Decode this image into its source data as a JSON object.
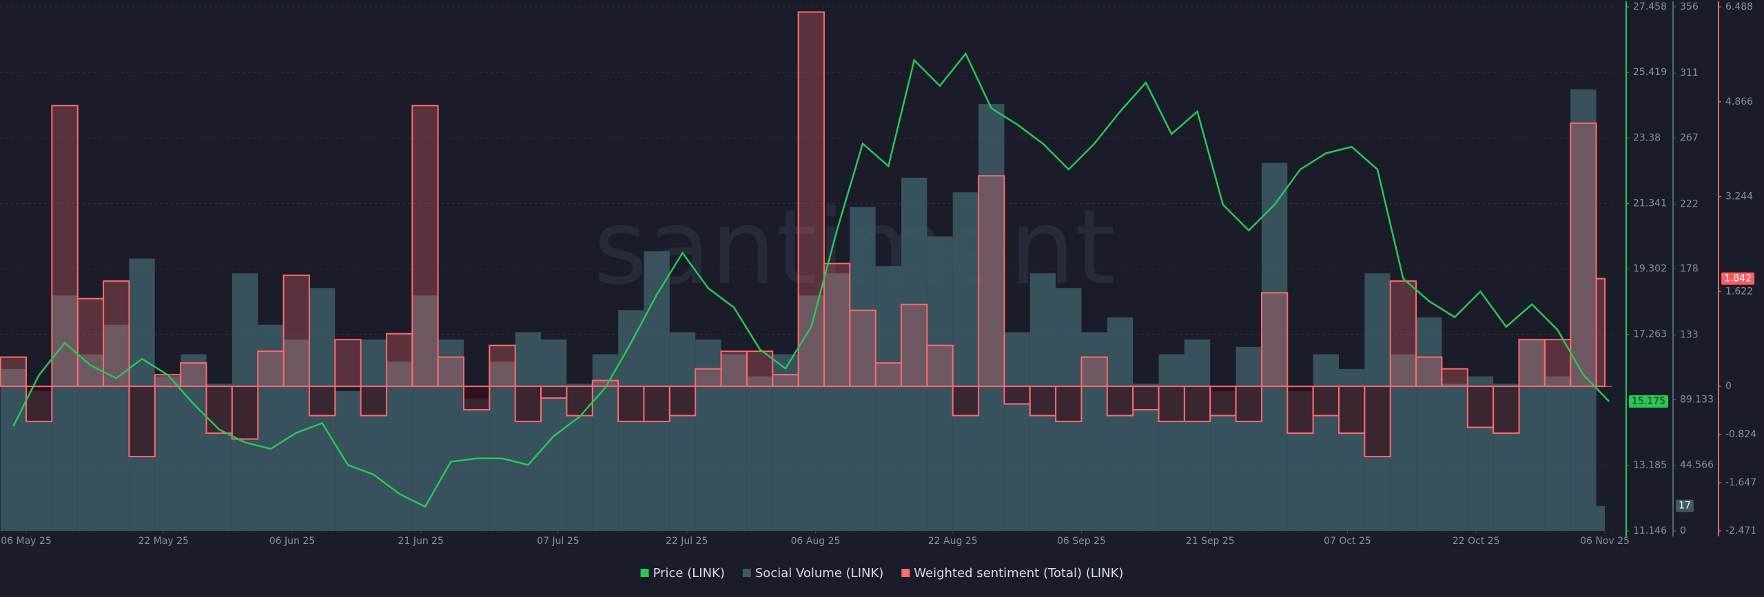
{
  "chart_data": {
    "type": "line",
    "watermark": "santiment",
    "x": [
      "2025-05-03",
      "2025-05-06",
      "2025-05-09",
      "2025-05-12",
      "2025-05-15",
      "2025-05-18",
      "2025-05-21",
      "2025-05-24",
      "2025-05-27",
      "2025-05-30",
      "2025-06-02",
      "2025-06-05",
      "2025-06-08",
      "2025-06-11",
      "2025-06-14",
      "2025-06-17",
      "2025-06-20",
      "2025-06-23",
      "2025-06-26",
      "2025-06-29",
      "2025-07-02",
      "2025-07-05",
      "2025-07-08",
      "2025-07-11",
      "2025-07-14",
      "2025-07-17",
      "2025-07-20",
      "2025-07-23",
      "2025-07-26",
      "2025-07-29",
      "2025-08-01",
      "2025-08-04",
      "2025-08-07",
      "2025-08-10",
      "2025-08-13",
      "2025-08-16",
      "2025-08-19",
      "2025-08-22",
      "2025-08-25",
      "2025-08-28",
      "2025-08-31",
      "2025-09-03",
      "2025-09-06",
      "2025-09-09",
      "2025-09-12",
      "2025-09-15",
      "2025-09-18",
      "2025-09-21",
      "2025-09-24",
      "2025-09-27",
      "2025-09-30",
      "2025-10-03",
      "2025-10-06",
      "2025-10-09",
      "2025-10-12",
      "2025-10-15",
      "2025-10-18",
      "2025-10-21",
      "2025-10-24",
      "2025-10-27",
      "2025-10-30",
      "2025-11-02",
      "2025-11-05"
    ],
    "xticks": [
      {
        "value": "2025-05-06",
        "label": "06 May 25"
      },
      {
        "value": "2025-05-22",
        "label": "22 May 25"
      },
      {
        "value": "2025-06-06",
        "label": "06 Jun 25"
      },
      {
        "value": "2025-06-21",
        "label": "21 Jun 25"
      },
      {
        "value": "2025-07-07",
        "label": "07 Jul 25"
      },
      {
        "value": "2025-07-22",
        "label": "22 Jul 25"
      },
      {
        "value": "2025-08-06",
        "label": "06 Aug 25"
      },
      {
        "value": "2025-08-22",
        "label": "22 Aug 25"
      },
      {
        "value": "2025-09-06",
        "label": "06 Sep 25"
      },
      {
        "value": "2025-09-21",
        "label": "21 Sep 25"
      },
      {
        "value": "2025-10-07",
        "label": "07 Oct 25"
      },
      {
        "value": "2025-10-22",
        "label": "22 Oct 25"
      },
      {
        "value": "2025-11-06",
        "label": "06 Nov 25"
      }
    ],
    "ylim": [
      11.146,
      27.458
    ],
    "yticks": [
      11.146,
      13.185,
      17.263,
      19.302,
      21.341,
      23.38,
      25.419,
      27.458
    ],
    "y2lim": [
      0,
      356
    ],
    "y2ticks": [
      0,
      44.566,
      89.133,
      133,
      178,
      222,
      267,
      311,
      356
    ],
    "y3lim": [
      -2.471,
      6.488
    ],
    "y3ticks": [
      -2.471,
      -1.647,
      -0.824,
      0,
      1.622,
      3.244,
      4.866,
      6.488
    ],
    "series": [
      {
        "name": "Price (LINK)",
        "color": "#26c953",
        "axis": "y",
        "values": [
          14.4,
          16.0,
          17.0,
          16.3,
          15.9,
          16.5,
          16.0,
          15.1,
          14.3,
          13.9,
          13.7,
          14.2,
          14.5,
          13.2,
          12.9,
          12.3,
          11.9,
          13.3,
          13.4,
          13.4,
          13.2,
          14.1,
          14.7,
          15.6,
          17.0,
          18.5,
          19.8,
          18.7,
          18.1,
          16.8,
          16.2,
          17.5,
          20.5,
          23.2,
          22.5,
          25.8,
          25.0,
          26.0,
          24.3,
          23.8,
          23.2,
          22.4,
          23.2,
          24.2,
          25.1,
          23.5,
          24.2,
          21.3,
          20.5,
          21.3,
          22.4,
          22.9,
          23.1,
          22.4,
          19.0,
          18.3,
          17.8,
          18.6,
          17.5,
          18.2,
          17.4,
          16.0,
          15.175
        ]
      },
      {
        "name": "Social Volume (LINK)",
        "color": "#3d5a66",
        "axis": "y2",
        "values": [
          110,
          95,
          160,
          120,
          140,
          185,
          105,
          120,
          100,
          175,
          140,
          130,
          165,
          95,
          130,
          115,
          160,
          130,
          90,
          115,
          135,
          130,
          100,
          120,
          150,
          190,
          135,
          130,
          120,
          105,
          120,
          160,
          175,
          220,
          180,
          240,
          200,
          230,
          290,
          135,
          175,
          165,
          135,
          145,
          100,
          120,
          130,
          95,
          125,
          250,
          95,
          120,
          110,
          175,
          120,
          145,
          100,
          105,
          100,
          130,
          105,
          300,
          17
        ]
      },
      {
        "name": "Weighted sentiment (Total) (LINK)",
        "color": "#ff6b6b",
        "axis": "y3",
        "values": [
          0.5,
          -0.6,
          4.8,
          1.5,
          1.8,
          -1.2,
          0.2,
          0.4,
          -0.8,
          -0.9,
          0.6,
          1.9,
          -0.5,
          0.8,
          -0.5,
          0.9,
          4.8,
          0.5,
          -0.4,
          0.7,
          -0.6,
          -0.2,
          -0.5,
          0.1,
          -0.6,
          -0.6,
          -0.5,
          0.3,
          0.6,
          0.6,
          0.2,
          6.4,
          2.1,
          1.3,
          0.4,
          1.4,
          0.7,
          -0.5,
          3.6,
          -0.3,
          -0.5,
          -0.6,
          0.5,
          -0.5,
          -0.4,
          -0.6,
          -0.6,
          -0.5,
          -0.6,
          1.6,
          -0.8,
          -0.5,
          -0.8,
          -1.2,
          1.8,
          0.5,
          0.3,
          -0.7,
          -0.8,
          0.8,
          0.8,
          4.5,
          1.842
        ]
      }
    ]
  }
}
